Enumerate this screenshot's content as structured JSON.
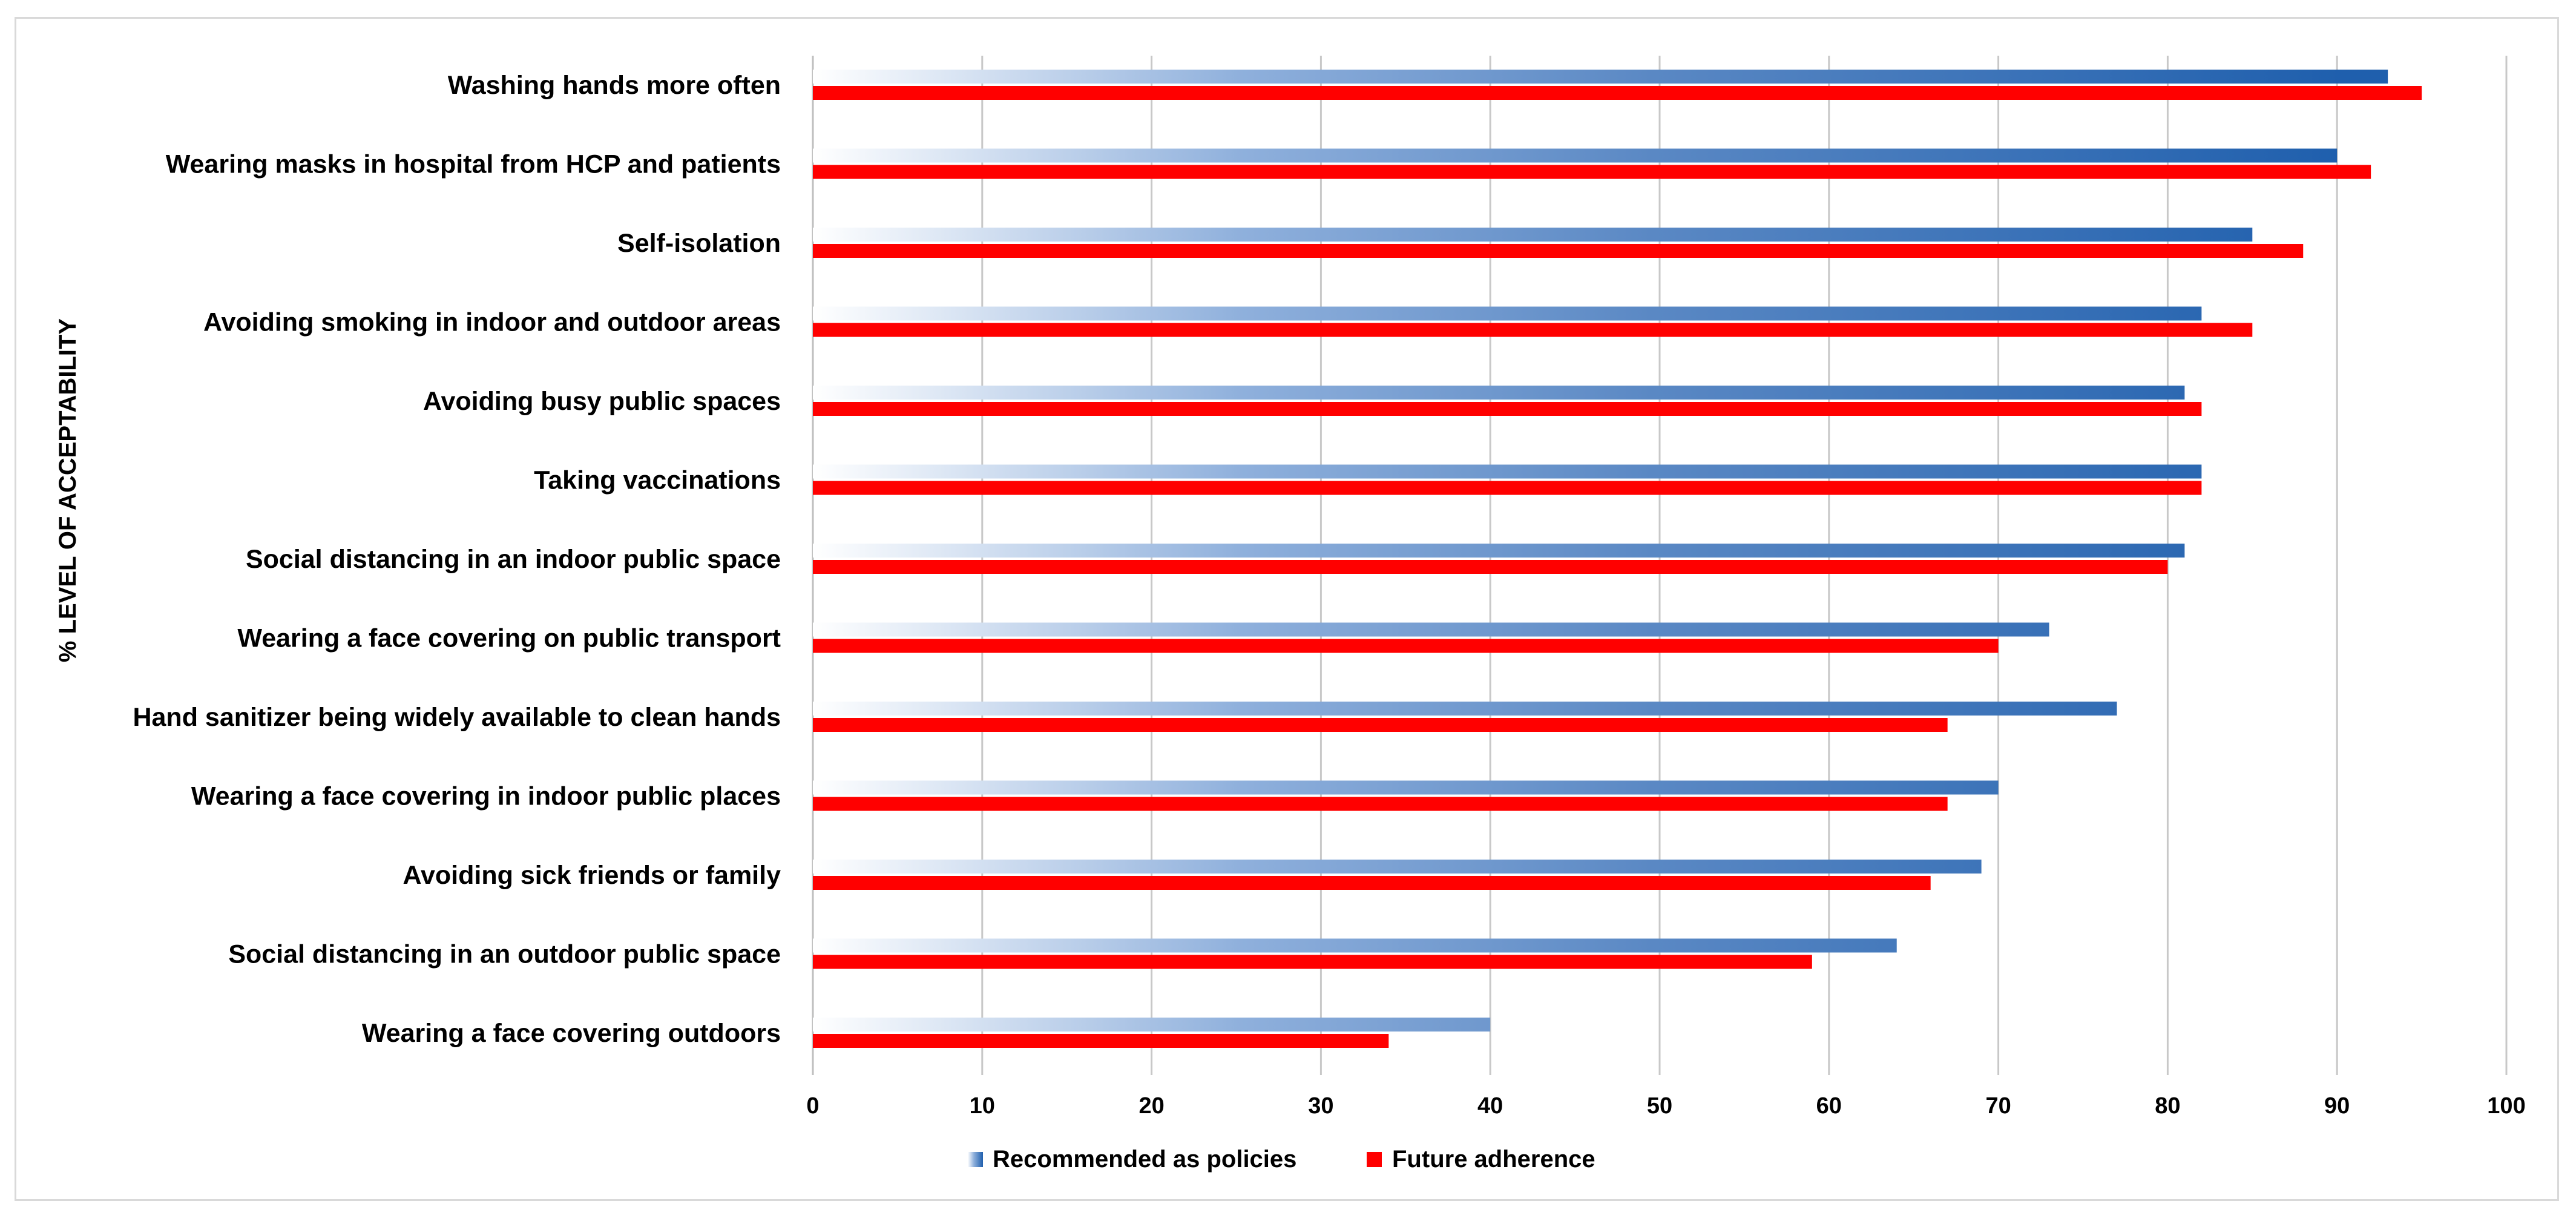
{
  "chart_data": {
    "type": "bar",
    "orientation": "horizontal",
    "title": "",
    "xlabel": "",
    "ylabel": "% LEVEL OF ACCEPTABILITY",
    "xlim": [
      0,
      100
    ],
    "x_ticks": [
      0,
      10,
      20,
      30,
      40,
      50,
      60,
      70,
      80,
      90,
      100
    ],
    "grid": "vertical",
    "legend_position": "bottom",
    "categories": [
      "Washing hands more often",
      "Wearing masks in hospital from HCP and patients",
      "Self-isolation",
      "Avoiding smoking in indoor and outdoor areas",
      "Avoiding busy public spaces",
      "Taking vaccinations",
      "Social distancing in an indoor public space",
      "Wearing a face covering on public transport",
      "Hand sanitizer being widely available to clean hands",
      "Wearing a face covering in indoor public places",
      "Avoiding sick friends or family",
      "Social distancing in an outdoor public space",
      "Wearing a face covering outdoors"
    ],
    "series": [
      {
        "name": "Recommended as policies",
        "color": "#1f5fad",
        "style": "gradient",
        "values": [
          93,
          90,
          85,
          82,
          81,
          82,
          81,
          73,
          77,
          70,
          69,
          64,
          40
        ]
      },
      {
        "name": "Future adherence",
        "color": "#ff0000",
        "style": "solid",
        "values": [
          95,
          92,
          88,
          85,
          82,
          82,
          80,
          70,
          67,
          67,
          66,
          59,
          34
        ]
      }
    ]
  }
}
